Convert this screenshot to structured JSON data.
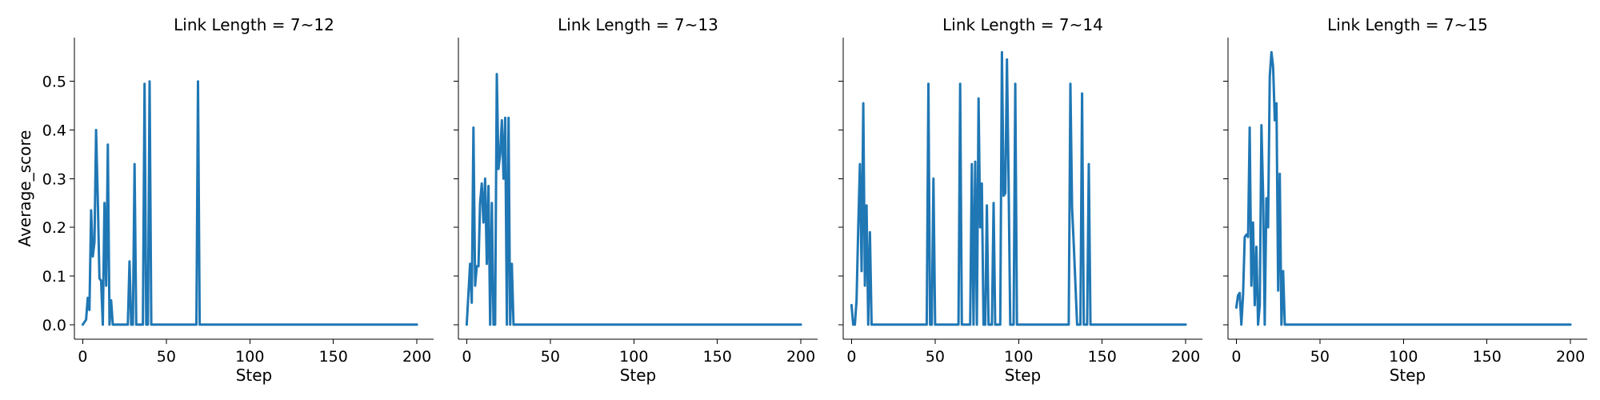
{
  "colors": {
    "series": "#1f77b4",
    "axis": "#000000",
    "background": "#ffffff"
  },
  "chart_data": [
    {
      "type": "line",
      "title": "Link Length = 7~12",
      "xlabel": "Step",
      "ylabel": "Average_score",
      "xlim": [
        -5,
        210
      ],
      "ylim": [
        -0.03,
        0.59
      ],
      "xticks": [
        0,
        50,
        100,
        150,
        200
      ],
      "yticks": [
        0.0,
        0.1,
        0.2,
        0.3,
        0.4,
        0.5
      ],
      "xtick_labels": [
        "0",
        "50",
        "100",
        "150",
        "200"
      ],
      "ytick_labels": [
        "0.0",
        "0.1",
        "0.2",
        "0.3",
        "0.4",
        "0.5"
      ],
      "grid": false,
      "series": [
        {
          "x": [
            0,
            2,
            3,
            4,
            5,
            6,
            7,
            8,
            9,
            10,
            11,
            12,
            13,
            14,
            15,
            16,
            17,
            18,
            19,
            20,
            21,
            22,
            27,
            28,
            29,
            30,
            31,
            32,
            36,
            37,
            38,
            39,
            40,
            41,
            68,
            69,
            70,
            71,
            200
          ],
          "y": [
            0.0,
            0.01,
            0.055,
            0.03,
            0.235,
            0.14,
            0.17,
            0.4,
            0.26,
            0.095,
            0.09,
            0.0,
            0.25,
            0.08,
            0.37,
            0.0,
            0.05,
            0.0,
            0.0,
            0.0,
            0.0,
            0.0,
            0.0,
            0.13,
            0.0,
            0.0,
            0.33,
            0.0,
            0.0,
            0.495,
            0.0,
            0.0,
            0.5,
            0.0,
            0.0,
            0.5,
            0.0,
            0.0,
            0.0
          ]
        }
      ]
    },
    {
      "type": "line",
      "title": "Link Length = 7~13",
      "xlabel": "Step",
      "ylabel": "",
      "xlim": [
        -5,
        210
      ],
      "ylim": [
        -0.03,
        0.59
      ],
      "xticks": [
        0,
        50,
        100,
        150,
        200
      ],
      "yticks": [
        0.0,
        0.1,
        0.2,
        0.3,
        0.4,
        0.5
      ],
      "xtick_labels": [
        "0",
        "50",
        "100",
        "150",
        "200"
      ],
      "ytick_labels": [
        "",
        "",
        "",
        "",
        "",
        ""
      ],
      "grid": false,
      "series": [
        {
          "x": [
            0,
            2,
            3,
            4,
            5,
            6,
            7,
            8,
            9,
            10,
            11,
            12,
            13,
            14,
            15,
            16,
            17,
            18,
            19,
            20,
            21,
            22,
            23,
            24,
            25,
            26,
            27,
            28,
            29,
            30,
            31,
            32,
            200
          ],
          "y": [
            0.0,
            0.125,
            0.045,
            0.405,
            0.08,
            0.12,
            0.12,
            0.25,
            0.29,
            0.21,
            0.3,
            0.125,
            0.285,
            0.0,
            0.25,
            0.0,
            0.0,
            0.515,
            0.32,
            0.35,
            0.42,
            0.3,
            0.425,
            0.0,
            0.425,
            0.0,
            0.125,
            0.0,
            0.0,
            0.0,
            0.0,
            0.0,
            0.0
          ]
        }
      ]
    },
    {
      "type": "line",
      "title": "Link Length = 7~14",
      "xlabel": "Step",
      "ylabel": "",
      "xlim": [
        -5,
        210
      ],
      "ylim": [
        -0.03,
        0.59
      ],
      "xticks": [
        0,
        50,
        100,
        150,
        200
      ],
      "yticks": [
        0.0,
        0.1,
        0.2,
        0.3,
        0.4,
        0.5
      ],
      "xtick_labels": [
        "0",
        "50",
        "100",
        "150",
        "200"
      ],
      "ytick_labels": [
        "",
        "",
        "",
        "",
        "",
        ""
      ],
      "grid": false,
      "series": [
        {
          "x": [
            0,
            1,
            2,
            3,
            4,
            5,
            6,
            7,
            8,
            9,
            10,
            11,
            12,
            13,
            14,
            15,
            45,
            46,
            47,
            48,
            49,
            50,
            51,
            63,
            64,
            65,
            66,
            67,
            71,
            72,
            73,
            74,
            75,
            76,
            77,
            78,
            79,
            80,
            81,
            82,
            83,
            84,
            85,
            86,
            87,
            88,
            89,
            90,
            91,
            92,
            93,
            94,
            95,
            96,
            97,
            98,
            99,
            100,
            101,
            102,
            104,
            130,
            131,
            132,
            133,
            135,
            136,
            137,
            138,
            139,
            140,
            141,
            142,
            143,
            144,
            145,
            200
          ],
          "y": [
            0.04,
            0.0,
            0.0,
            0.05,
            0.2,
            0.33,
            0.11,
            0.455,
            0.08,
            0.245,
            0.0,
            0.19,
            0.0,
            0.0,
            0.0,
            0.0,
            0.0,
            0.495,
            0.0,
            0.0,
            0.3,
            0.0,
            0.0,
            0.0,
            0.0,
            0.495,
            0.0,
            0.0,
            0.0,
            0.33,
            0.0,
            0.335,
            0.0,
            0.465,
            0.2,
            0.29,
            0.0,
            0.0,
            0.245,
            0.0,
            0.0,
            0.0,
            0.25,
            0.0,
            0.0,
            0.0,
            0.0,
            0.56,
            0.265,
            0.27,
            0.545,
            0.3,
            0.0,
            0.0,
            0.0,
            0.495,
            0.0,
            0.0,
            0.0,
            0.0,
            0.0,
            0.0,
            0.495,
            0.24,
            0.165,
            0.0,
            0.0,
            0.0,
            0.475,
            0.0,
            0.0,
            0.0,
            0.33,
            0.0,
            0.0,
            0.0,
            0.0
          ]
        }
      ]
    },
    {
      "type": "line",
      "title": "Link Length = 7~15",
      "xlabel": "Step",
      "ylabel": "",
      "xlim": [
        -5,
        210
      ],
      "ylim": [
        -0.03,
        0.59
      ],
      "xticks": [
        0,
        50,
        100,
        150,
        200
      ],
      "yticks": [
        0.0,
        0.1,
        0.2,
        0.3,
        0.4,
        0.5
      ],
      "xtick_labels": [
        "0",
        "50",
        "100",
        "150",
        "200"
      ],
      "ytick_labels": [
        "",
        "",
        "",
        "",
        "",
        ""
      ],
      "grid": false,
      "series": [
        {
          "x": [
            0,
            1,
            2,
            3,
            4,
            5,
            6,
            7,
            8,
            9,
            10,
            11,
            12,
            13,
            14,
            15,
            16,
            17,
            18,
            19,
            20,
            21,
            22,
            23,
            24,
            25,
            26,
            27,
            28,
            29,
            30,
            31,
            32,
            33,
            200
          ],
          "y": [
            0.035,
            0.06,
            0.065,
            0.0,
            0.06,
            0.18,
            0.185,
            0.18,
            0.405,
            0.08,
            0.21,
            0.04,
            0.16,
            0.0,
            0.04,
            0.41,
            0.265,
            0.0,
            0.26,
            0.2,
            0.51,
            0.56,
            0.53,
            0.42,
            0.455,
            0.07,
            0.31,
            0.0,
            0.11,
            0.0,
            0.0,
            0.0,
            0.0,
            0.0,
            0.0
          ]
        }
      ]
    }
  ]
}
